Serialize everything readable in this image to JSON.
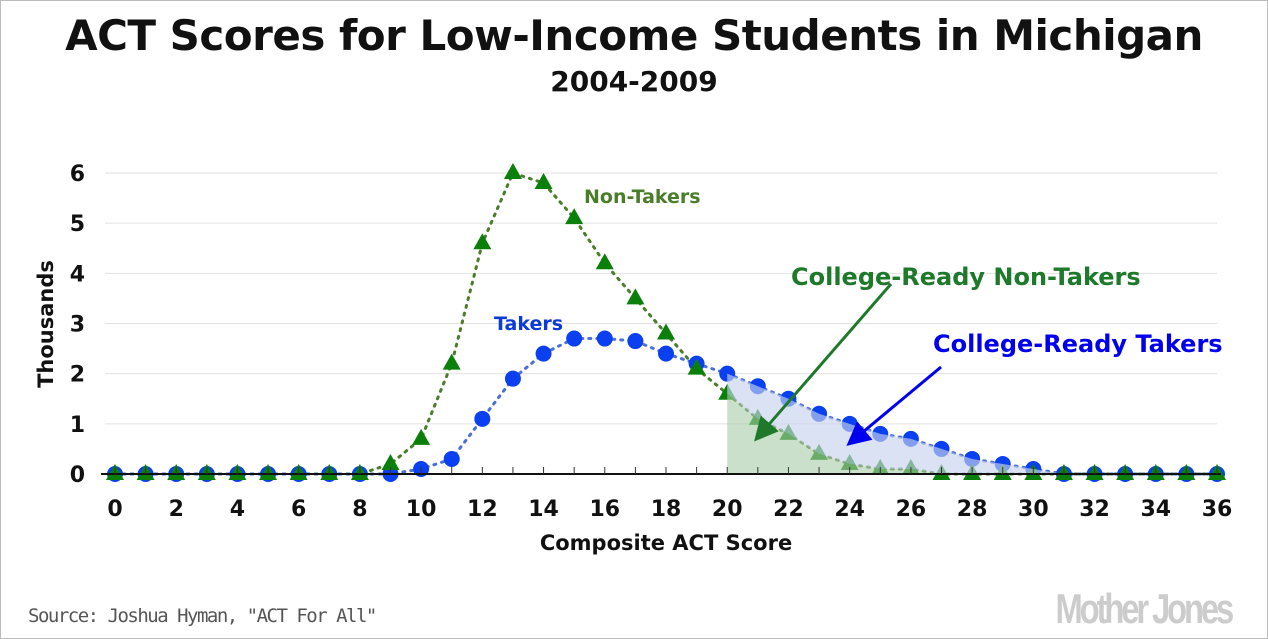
{
  "chart_data": {
    "type": "line",
    "title": "ACT Scores for Low-Income Students in Michigan",
    "subtitle": "2004-2009",
    "xlabel": "Composite ACT Score",
    "ylabel": "Thousands",
    "xlim": [
      0,
      36
    ],
    "ylim": [
      0,
      6
    ],
    "xticks": [
      "0",
      "2",
      "4",
      "6",
      "8",
      "10",
      "12",
      "14",
      "16",
      "18",
      "20",
      "22",
      "24",
      "26",
      "28",
      "30",
      "32",
      "34",
      "36"
    ],
    "yticks": [
      "0",
      "1",
      "2",
      "3",
      "4",
      "5",
      "6"
    ],
    "grid": true,
    "x": [
      0,
      1,
      2,
      3,
      4,
      5,
      6,
      7,
      8,
      9,
      10,
      11,
      12,
      13,
      14,
      15,
      16,
      17,
      18,
      19,
      20,
      21,
      22,
      23,
      24,
      25,
      26,
      27,
      28,
      29,
      30,
      31,
      32,
      33,
      34,
      35,
      36
    ],
    "series": [
      {
        "name": "Non-Takers",
        "marker": "triangle",
        "color": "#0a800a",
        "values": [
          0,
          0,
          0,
          0,
          0,
          0,
          0,
          0,
          0,
          0.2,
          0.7,
          2.2,
          4.6,
          6.0,
          5.8,
          5.1,
          4.2,
          3.5,
          2.8,
          2.1,
          1.6,
          1.1,
          0.8,
          0.4,
          0.2,
          0.1,
          0.1,
          0,
          0,
          0,
          0,
          0,
          0,
          0,
          0,
          0,
          0
        ]
      },
      {
        "name": "Takers",
        "marker": "circle",
        "color": "#0a40f0",
        "values": [
          0,
          0,
          0,
          0,
          0,
          0,
          0,
          0,
          0,
          0,
          0.1,
          0.3,
          1.1,
          1.9,
          2.4,
          2.7,
          2.7,
          2.65,
          2.4,
          2.2,
          2.0,
          1.75,
          1.5,
          1.2,
          1.0,
          0.8,
          0.7,
          0.5,
          0.3,
          0.2,
          0.1,
          0,
          0,
          0,
          0,
          0,
          0
        ]
      }
    ],
    "shaded_from_x": 20,
    "annotations": {
      "non_takers_label": "Non-Takers",
      "takers_label": "Takers",
      "college_ready_non_takers": "College-Ready Non-Takers",
      "college_ready_takers": "College-Ready Takers"
    },
    "colors": {
      "non_takers_label": "#4a7d2a",
      "takers_label": "#0a3ad8",
      "cr_non_takers": "#1e7a2a",
      "cr_takers": "#0000ee",
      "grid": "#e2e2e2"
    }
  },
  "footer": {
    "source": "Source: Joshua Hyman, \"ACT For All\"",
    "logo": "Mother Jones"
  }
}
